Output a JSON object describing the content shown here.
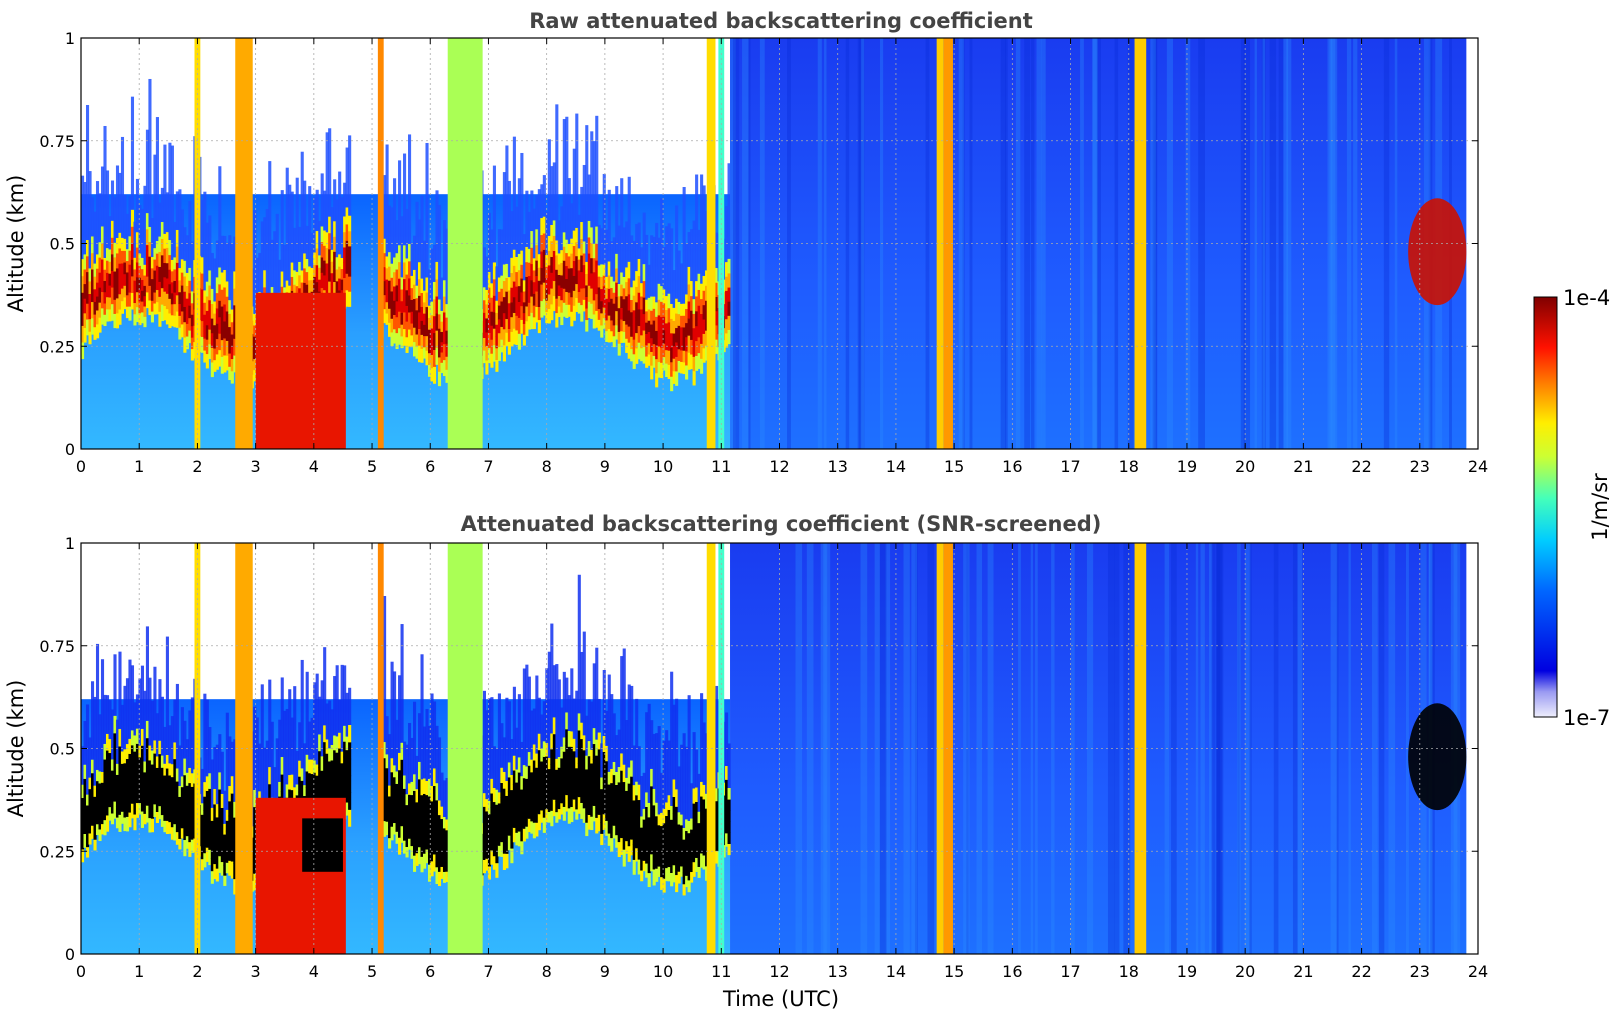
{
  "chart_data": [
    {
      "type": "heatmap",
      "title": "Raw attenuated backscattering coefficient",
      "xlabel": "",
      "ylabel": "Altitude (km)",
      "xlim": [
        0,
        24
      ],
      "ylim": [
        0,
        1
      ],
      "x_ticks": [
        "0",
        "1",
        "2",
        "3",
        "4",
        "5",
        "6",
        "7",
        "8",
        "9",
        "10",
        "11",
        "12",
        "13",
        "14",
        "15",
        "16",
        "17",
        "18",
        "19",
        "20",
        "21",
        "22",
        "23",
        "24"
      ],
      "y_ticks": [
        "0",
        "0.25",
        "0.5",
        "0.75",
        "1"
      ],
      "grid": true,
      "data_end_hour": 23.8,
      "features": [
        {
          "x_range": [
            0,
            10.7
          ],
          "description": "aerosol/cloud layer with strong backscatter near 0.3–0.45 km"
        },
        {
          "x_range": [
            3.0,
            4.6
          ],
          "description": "high backscatter from surface to ~0.4 km"
        },
        {
          "x_range": [
            4.6,
            5.1
          ],
          "description": "no data"
        },
        {
          "x_range": [
            14.7,
            15.0
          ],
          "description": "vertical high-backscatter band"
        },
        {
          "x_range": [
            18.1,
            18.3
          ],
          "description": "vertical high-backscatter band"
        },
        {
          "x_range": [
            22.8,
            23.8
          ],
          "description": "elevated layer at ~0.4–0.6 km"
        }
      ]
    },
    {
      "type": "heatmap",
      "title": "Attenuated backscattering coefficient (SNR-screened)",
      "xlabel": "Time (UTC)",
      "ylabel": "Altitude (km)",
      "xlim": [
        0,
        24
      ],
      "ylim": [
        0,
        1
      ],
      "x_ticks": [
        "0",
        "1",
        "2",
        "3",
        "4",
        "5",
        "6",
        "7",
        "8",
        "9",
        "10",
        "11",
        "12",
        "13",
        "14",
        "15",
        "16",
        "17",
        "18",
        "19",
        "20",
        "21",
        "22",
        "23",
        "24"
      ],
      "y_ticks": [
        "0",
        "0.25",
        "0.5",
        "0.75",
        "1"
      ],
      "grid": true,
      "data_end_hour": 23.8,
      "features": [
        {
          "x_range": [
            0,
            10.7
          ],
          "description": "saturated (black) layer near 0.3–0.45 km"
        },
        {
          "x_range": [
            3.0,
            4.6
          ],
          "description": "high backscatter from surface to ~0.4 km"
        },
        {
          "x_range": [
            4.6,
            5.1
          ],
          "description": "no data"
        },
        {
          "x_range": [
            14.7,
            15.0
          ],
          "description": "vertical high-backscatter band"
        },
        {
          "x_range": [
            18.1,
            18.3
          ],
          "description": "vertical high-backscatter band"
        },
        {
          "x_range": [
            22.8,
            23.8
          ],
          "description": "elevated layer at ~0.4–0.6 km"
        }
      ]
    }
  ],
  "colorbar": {
    "label": "1/m/sr",
    "min_label": "1e-7",
    "max_label": "1e-4",
    "colormap": "jet"
  }
}
